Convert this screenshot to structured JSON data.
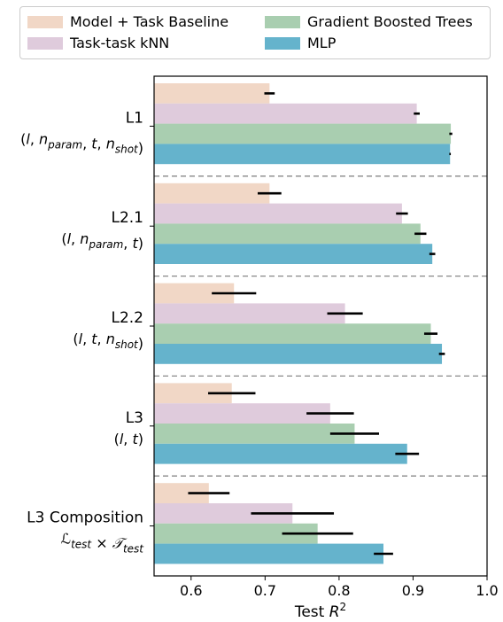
{
  "chart_data": {
    "type": "bar",
    "orientation": "horizontal",
    "xlabel": "Test R²",
    "xlabel_parts": {
      "base": "Test ",
      "var": "R",
      "sup": "2"
    },
    "xlim": [
      0.55,
      1.0
    ],
    "xticks": [
      "0.6",
      "0.7",
      "0.8",
      "0.9",
      "1.0"
    ],
    "xtick_values": [
      0.6,
      0.7,
      0.8,
      0.9,
      1.0
    ],
    "grid": false,
    "legend_position": "top",
    "categories": [
      {
        "label": "L1",
        "sublabel": "(l, n_param, t, n_shot)"
      },
      {
        "label": "L2.1",
        "sublabel": "(l, n_param, t)"
      },
      {
        "label": "L2.2",
        "sublabel": "(l, t, n_shot)"
      },
      {
        "label": "L3",
        "sublabel": "(l, t)"
      },
      {
        "label": "L3 Composition",
        "sublabel": "L_test × T_test"
      }
    ],
    "series": [
      {
        "name": "Model + Task Baseline",
        "color": "#f1d7c6",
        "values": [
          0.706,
          0.706,
          0.658,
          0.655,
          0.624
        ],
        "errors": [
          0.007,
          0.016,
          0.03,
          0.032,
          0.028
        ]
      },
      {
        "name": "Task-task kNN",
        "color": "#dfcbdc",
        "values": [
          0.905,
          0.885,
          0.808,
          0.788,
          0.737
        ],
        "errors": [
          0.004,
          0.008,
          0.024,
          0.032,
          0.056
        ]
      },
      {
        "name": "Gradient Boosted Trees",
        "color": "#a9ceb0",
        "values": [
          0.951,
          0.91,
          0.924,
          0.821,
          0.771
        ],
        "errors": [
          0.002,
          0.008,
          0.009,
          0.033,
          0.048
        ]
      },
      {
        "name": "MLP",
        "color": "#65b3cc",
        "values": [
          0.95,
          0.926,
          0.939,
          0.892,
          0.86
        ],
        "errors": [
          0.001,
          0.004,
          0.004,
          0.016,
          0.013
        ]
      }
    ]
  }
}
